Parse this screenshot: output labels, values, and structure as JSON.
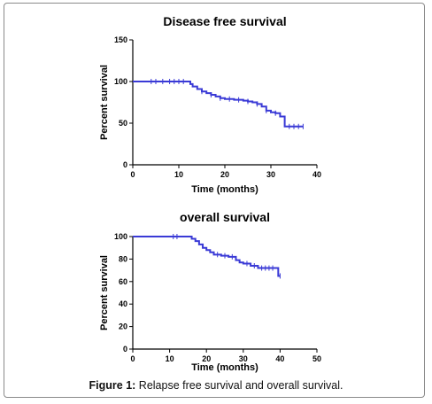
{
  "caption": {
    "label": "Figure 1:",
    "text": " Relapse free survival and overall survival."
  },
  "chart_data": [
    {
      "type": "line",
      "title": "Disease free survival",
      "xlabel": "Time (months)",
      "ylabel": "Percent survival",
      "xlim": [
        0,
        40
      ],
      "ylim": [
        0,
        150
      ],
      "xticks": [
        0,
        10,
        20,
        30,
        40
      ],
      "yticks": [
        0,
        50,
        100,
        150
      ],
      "line_color": "#3a3ad6",
      "series": [
        {
          "x": [
            0,
            12,
            12.5,
            13,
            14,
            15,
            16,
            17,
            18,
            19,
            20,
            22,
            24,
            25,
            26,
            27,
            28,
            29,
            30,
            31,
            32,
            33,
            37
          ],
          "y": [
            100,
            100,
            97,
            94,
            91,
            88,
            86,
            84,
            82,
            80,
            79,
            78,
            77,
            76,
            75,
            73,
            70,
            65,
            63,
            62,
            58,
            46,
            46
          ]
        }
      ],
      "censor_x": [
        4,
        5,
        6.5,
        8,
        9,
        10,
        11,
        15,
        17,
        19,
        21,
        23,
        25,
        27,
        29,
        31,
        34,
        35,
        36,
        37
      ]
    },
    {
      "type": "line",
      "title": "overall survival",
      "xlabel": "Time (months)",
      "ylabel": "Percent survival",
      "xlim": [
        0,
        50
      ],
      "ylim": [
        0,
        100
      ],
      "xticks": [
        0,
        10,
        20,
        30,
        40,
        50
      ],
      "yticks": [
        0,
        20,
        40,
        60,
        80,
        100
      ],
      "line_color": "#3a3ad6",
      "series": [
        {
          "x": [
            0,
            14,
            16,
            17,
            18,
            19,
            20,
            21,
            22,
            24,
            26,
            28,
            29,
            30,
            32,
            34,
            39,
            39.5,
            40
          ],
          "y": [
            100,
            100,
            98,
            96,
            93,
            90,
            88,
            86,
            84,
            83,
            82,
            79,
            77,
            76,
            74,
            72,
            72,
            65,
            65
          ]
        }
      ],
      "censor_x": [
        11,
        12,
        23,
        25,
        27,
        31,
        33,
        35,
        36,
        37,
        38,
        40
      ]
    }
  ]
}
